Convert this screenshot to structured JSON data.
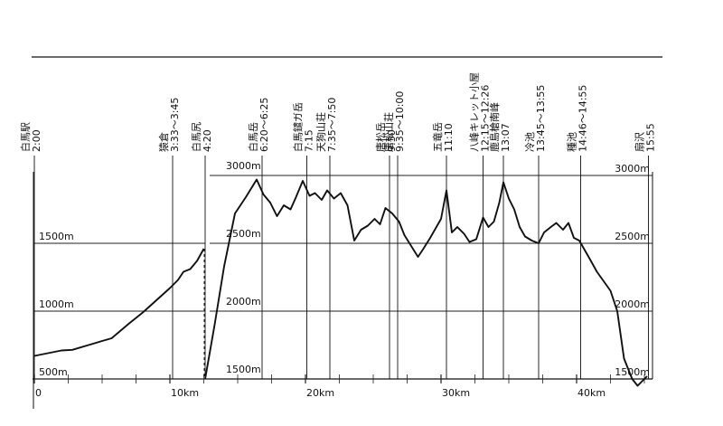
{
  "chart_data": {
    "type": "line",
    "title": "",
    "xlabel": "",
    "ylabel": "",
    "grid": true,
    "x_ticks": [
      {
        "value": 0,
        "label": "0"
      },
      {
        "value": 10,
        "label": "10km"
      },
      {
        "value": 20,
        "label": "20km"
      },
      {
        "value": 30,
        "label": "30km"
      },
      {
        "value": 40,
        "label": "40km"
      }
    ],
    "panels": [
      {
        "xlim": [
          0,
          12.6
        ],
        "ylim": [
          500,
          1500
        ],
        "y_ticks": [
          {
            "value": 500,
            "label": "500m"
          },
          {
            "value": 1000,
            "label": "1000m"
          },
          {
            "value": 1500,
            "label": "1500m"
          }
        ],
        "x": [
          0,
          1,
          2,
          2.8,
          4,
          5,
          5.7,
          7,
          8,
          9,
          10,
          10.6,
          11,
          11.5,
          12,
          12.5
        ],
        "y": [
          670,
          690,
          710,
          715,
          750,
          780,
          800,
          910,
          990,
          1080,
          1170,
          1230,
          1290,
          1310,
          1370,
          1460
        ]
      },
      {
        "xlim": [
          12.6,
          45.5
        ],
        "ylim": [
          1500,
          3000
        ],
        "y_ticks_left": [
          {
            "value": 1500,
            "label": "1500m"
          },
          {
            "value": 2000,
            "label": "2000m"
          },
          {
            "value": 2500,
            "label": "2500m"
          },
          {
            "value": 3000,
            "label": "3000m"
          }
        ],
        "y_ticks_right": [
          {
            "value": 1500,
            "label": "1500m"
          },
          {
            "value": 2000,
            "label": "2000m"
          },
          {
            "value": 2500,
            "label": "2500m"
          },
          {
            "value": 3000,
            "label": "3000m"
          }
        ],
        "x": [
          12.6,
          13.3,
          14,
          14.8,
          15.6,
          16.4,
          16.9,
          17.4,
          17.9,
          18.4,
          18.9,
          19.3,
          19.8,
          20.3,
          20.7,
          21.2,
          21.6,
          22.1,
          22.6,
          23.1,
          23.6,
          24.1,
          24.6,
          25.1,
          25.5,
          25.9,
          26.4,
          26.9,
          27.3,
          27.8,
          28.3,
          28.7,
          29.2,
          29.6,
          30,
          30.4,
          30.8,
          31.2,
          31.7,
          32.1,
          32.6,
          33.1,
          33.5,
          33.9,
          34.3,
          34.6,
          35,
          35.4,
          35.8,
          36.2,
          36.7,
          37.2,
          37.6,
          38.1,
          38.5,
          39,
          39.4,
          39.8,
          40.2,
          40.6,
          41,
          41.5,
          42,
          42.5,
          43,
          43.5,
          44.1,
          44.5,
          45.2
        ],
        "y": [
          1500,
          1900,
          2330,
          2720,
          2840,
          2970,
          2860,
          2800,
          2700,
          2780,
          2750,
          2840,
          2960,
          2850,
          2870,
          2820,
          2890,
          2830,
          2870,
          2780,
          2520,
          2600,
          2630,
          2680,
          2640,
          2760,
          2720,
          2660,
          2560,
          2480,
          2400,
          2460,
          2540,
          2610,
          2680,
          2890,
          2580,
          2620,
          2570,
          2510,
          2530,
          2690,
          2620,
          2660,
          2800,
          2950,
          2830,
          2750,
          2620,
          2550,
          2520,
          2500,
          2580,
          2620,
          2650,
          2600,
          2650,
          2540,
          2520,
          2450,
          2380,
          2290,
          2220,
          2150,
          2000,
          1650,
          1500,
          1450,
          1520
        ]
      }
    ],
    "waypoints": [
      {
        "x": 0,
        "name": "白馬駅",
        "time": "2:00",
        "panel": 0
      },
      {
        "x": 10.2,
        "name": "猿倉",
        "time": "3:33〜3:45",
        "panel": 0
      },
      {
        "x": 12.6,
        "name": "白馬尻",
        "time": "4:20",
        "panel": 1
      },
      {
        "x": 16.8,
        "name": "白馬岳",
        "time": "6:20〜6:25",
        "panel": 1
      },
      {
        "x": 20.1,
        "name": "白馬鑓ガ岳",
        "time": "7:15",
        "panel": 1
      },
      {
        "x": 21.8,
        "name": "天狗山荘",
        "time": "7:35〜7:50",
        "panel": 1
      },
      {
        "x": 26.2,
        "name": "唐松岳",
        "time": "9:30",
        "panel": 1
      },
      {
        "x": 26.8,
        "name": "唐松山荘",
        "time": "9:35〜10:00",
        "panel": 1
      },
      {
        "x": 30.4,
        "name": "五竜岳",
        "time": "11:10",
        "panel": 1
      },
      {
        "x": 33.1,
        "name": "八峰キレット小屋",
        "time": "12:15〜12:26",
        "panel": 1
      },
      {
        "x": 34.6,
        "name": "鹿島槍南峰",
        "time": "13:07",
        "panel": 1
      },
      {
        "x": 37.2,
        "name": "冷池",
        "time": "13:45〜13:55",
        "panel": 1
      },
      {
        "x": 40.3,
        "name": "種池",
        "time": "14:46〜14:55",
        "panel": 1
      },
      {
        "x": 45.3,
        "name": "扇沢",
        "time": "15:55",
        "panel": 1
      }
    ]
  }
}
